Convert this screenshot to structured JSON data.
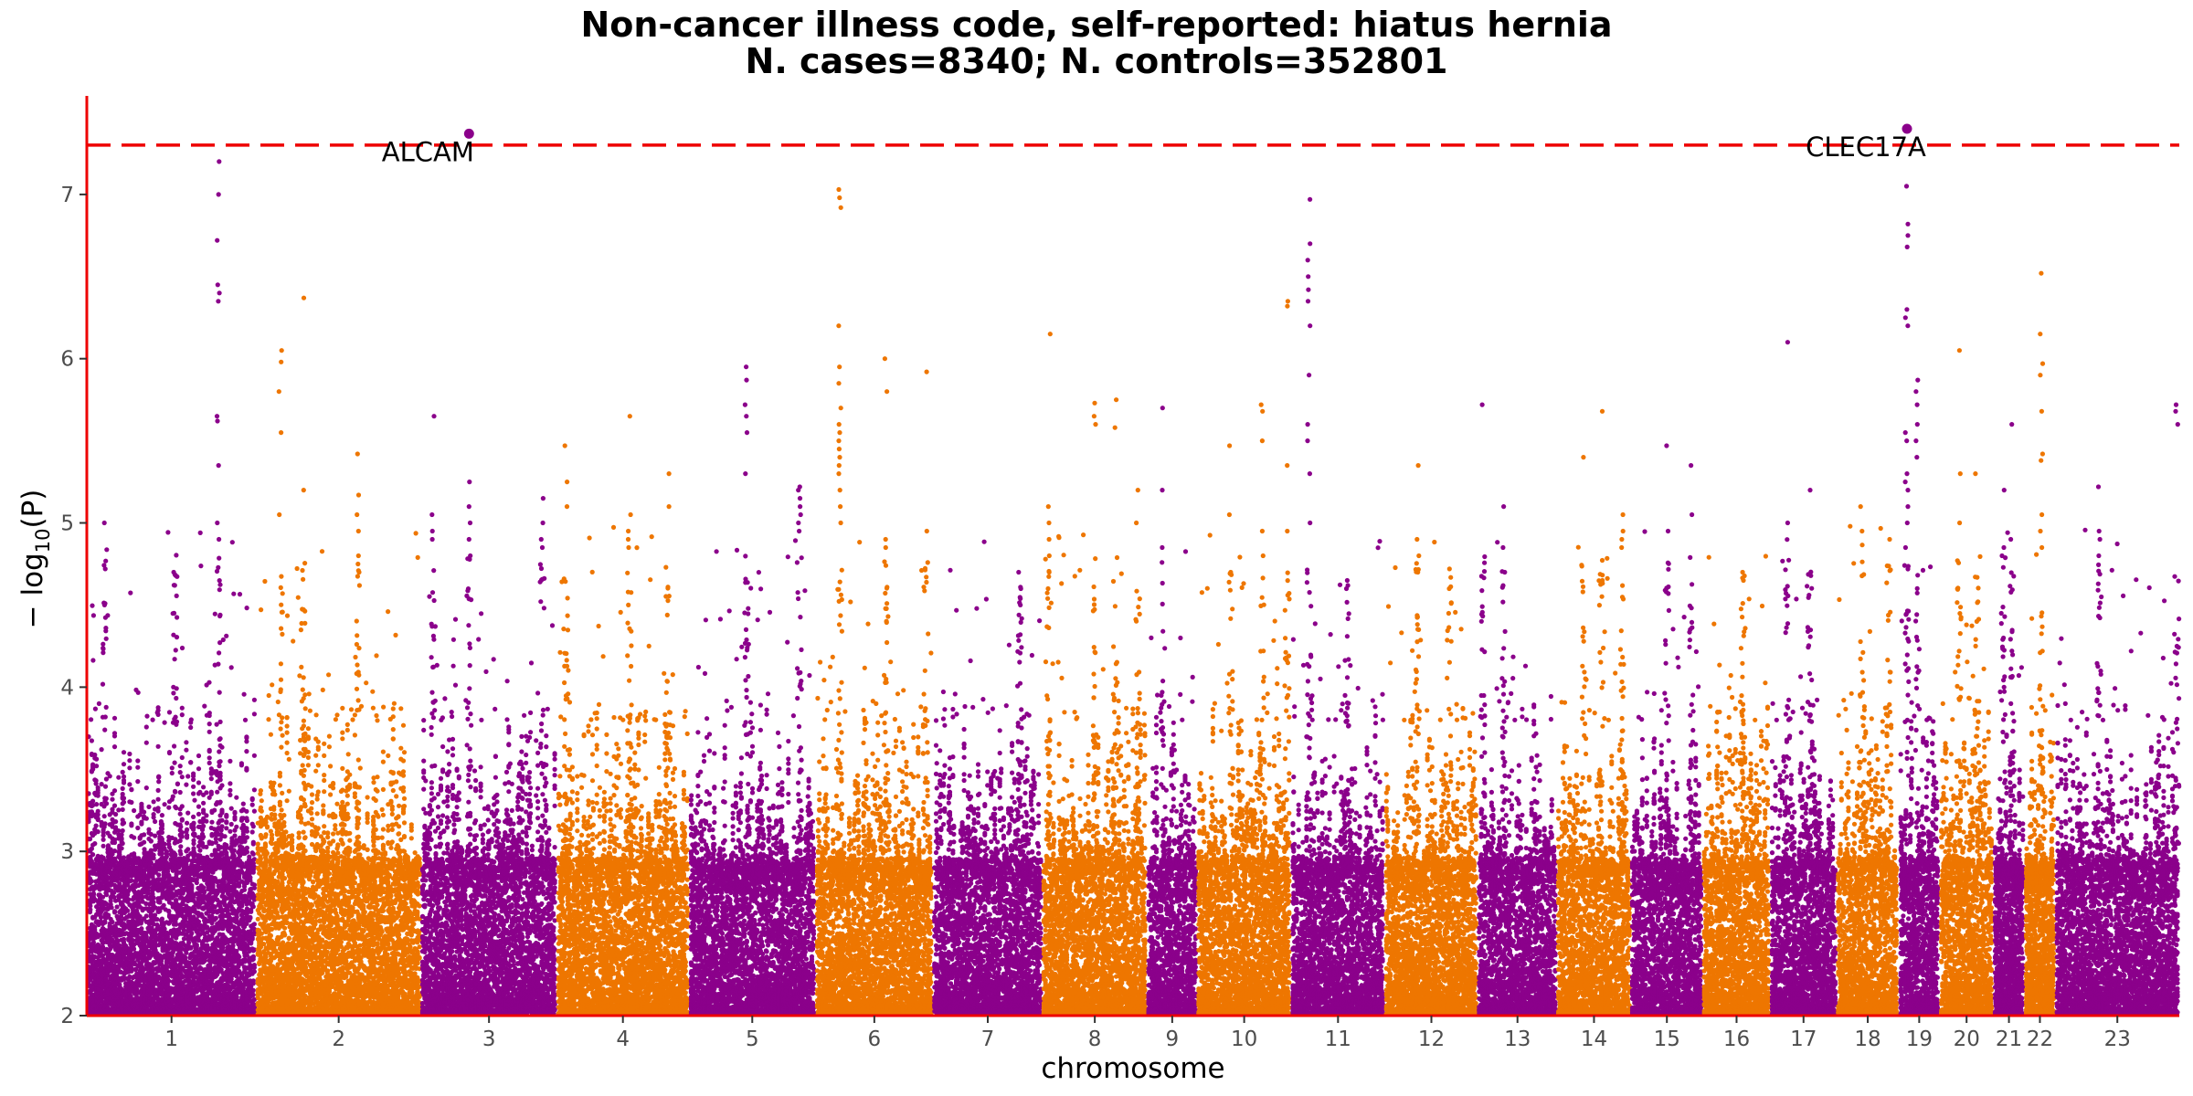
{
  "chart_data": {
    "type": "scatter",
    "title_line1": "Non-cancer illness code, self-reported: hiatus hernia",
    "title_line2": "N. cases=8340; N. controls=352801",
    "xlabel": "chromosome",
    "ylabel_prefix": "− log",
    "ylabel_sub": "10",
    "ylabel_suffix": "(P)",
    "ylim": [
      2,
      7.6
    ],
    "y_ticks": [
      2,
      3,
      4,
      5,
      6,
      7
    ],
    "significance_threshold": 7.3,
    "colors": {
      "odd": "#8b008b",
      "even": "#ee7600",
      "threshold": "#ee0000",
      "axis": "#ee0000"
    },
    "chromosomes": [
      {
        "label": "1",
        "span": [
          0.0,
          186.0
        ]
      },
      {
        "label": "2",
        "span": [
          186.0,
          367.0
        ]
      },
      {
        "label": "3",
        "span": [
          367.0,
          516.0
        ]
      },
      {
        "label": "4",
        "span": [
          516.0,
          661.0
        ]
      },
      {
        "label": "5",
        "span": [
          661.0,
          800.0
        ]
      },
      {
        "label": "6",
        "span": [
          800.0,
          929.0
        ]
      },
      {
        "label": "7",
        "span": [
          929.0,
          1049.0
        ]
      },
      {
        "label": "8",
        "span": [
          1049.0,
          1164.0
        ]
      },
      {
        "label": "9",
        "span": [
          1164.0,
          1219.0
        ]
      },
      {
        "label": "10",
        "span": [
          1219.0,
          1322.0
        ]
      },
      {
        "label": "11",
        "span": [
          1322.0,
          1425.0
        ]
      },
      {
        "label": "12",
        "span": [
          1425.0,
          1527.0
        ]
      },
      {
        "label": "13",
        "span": [
          1527.0,
          1614.0
        ]
      },
      {
        "label": "14",
        "span": [
          1614.0,
          1695.0
        ]
      },
      {
        "label": "15",
        "span": [
          1695.0,
          1774.0
        ]
      },
      {
        "label": "16",
        "span": [
          1774.0,
          1848.0
        ]
      },
      {
        "label": "17",
        "span": [
          1848.0,
          1921.0
        ]
      },
      {
        "label": "18",
        "span": [
          1921.0,
          1989.0
        ]
      },
      {
        "label": "19",
        "span": [
          1989.0,
          2034.0
        ]
      },
      {
        "label": "20",
        "span": [
          2034.0,
          2093.0
        ]
      },
      {
        "label": "21",
        "span": [
          2093.0,
          2127.0
        ]
      },
      {
        "label": "22",
        "span": [
          2127.0,
          2161.0
        ]
      },
      {
        "label": "23",
        "span": [
          2161.0,
          2297.0
        ]
      }
    ],
    "peaks": [
      {
        "chr": 1,
        "pos": 0.78,
        "values": [
          7.2,
          7.0,
          6.72,
          6.45,
          6.4,
          6.35,
          5.65,
          5.62,
          5.35,
          5.0,
          4.9
        ]
      },
      {
        "chr": 1,
        "pos": 0.52,
        "values": [
          4.7,
          4.68,
          4.62,
          4.45
        ]
      },
      {
        "chr": 1,
        "pos": 0.1,
        "values": [
          5.0,
          4.72,
          4.5
        ]
      },
      {
        "chr": 2,
        "pos": 0.14,
        "values": [
          6.05,
          5.98,
          5.8,
          5.55,
          5.05
        ]
      },
      {
        "chr": 2,
        "pos": 0.28,
        "values": [
          6.37,
          5.2
        ]
      },
      {
        "chr": 2,
        "pos": 0.62,
        "values": [
          5.42,
          5.17,
          5.05,
          4.95,
          4.8,
          4.75,
          4.7
        ]
      },
      {
        "chr": 3,
        "pos": 0.08,
        "values": [
          5.65,
          5.05,
          4.95,
          4.9
        ]
      },
      {
        "chr": 3,
        "pos": 0.35,
        "values": [
          5.25,
          5.1,
          5.0,
          4.9,
          4.8
        ]
      },
      {
        "chr": 3,
        "pos": 0.9,
        "values": [
          5.15,
          5.0,
          4.9,
          4.85
        ]
      },
      {
        "chr": 4,
        "pos": 0.06,
        "values": [
          5.47,
          5.25,
          5.1
        ]
      },
      {
        "chr": 4,
        "pos": 0.55,
        "values": [
          5.65,
          5.05,
          4.95,
          4.9,
          4.85
        ]
      },
      {
        "chr": 4,
        "pos": 0.85,
        "values": [
          5.3,
          5.1
        ]
      },
      {
        "chr": 5,
        "pos": 0.45,
        "values": [
          5.95,
          5.87,
          5.72,
          5.65,
          5.55,
          5.3
        ]
      },
      {
        "chr": 5,
        "pos": 0.88,
        "values": [
          5.22,
          5.2,
          5.15,
          5.1,
          5.05,
          5.0,
          4.95
        ]
      },
      {
        "chr": 6,
        "pos": 0.2,
        "values": [
          7.03,
          6.98,
          6.92,
          6.2,
          5.95,
          5.85,
          5.7,
          5.6,
          5.55,
          5.5,
          5.45,
          5.4,
          5.35,
          5.3,
          5.2,
          5.1,
          5.0
        ]
      },
      {
        "chr": 6,
        "pos": 0.6,
        "values": [
          6.0,
          5.8,
          4.9,
          4.85
        ]
      },
      {
        "chr": 6,
        "pos": 0.95,
        "values": [
          5.92,
          4.95
        ]
      },
      {
        "chr": 7,
        "pos": 0.8,
        "values": [
          4.7,
          4.6,
          4.5
        ]
      },
      {
        "chr": 8,
        "pos": 0.05,
        "values": [
          6.15,
          5.1,
          5.0,
          4.9,
          4.8,
          4.7,
          4.6
        ]
      },
      {
        "chr": 8,
        "pos": 0.5,
        "values": [
          5.73,
          5.65,
          5.6
        ]
      },
      {
        "chr": 8,
        "pos": 0.7,
        "values": [
          5.75,
          5.58
        ]
      },
      {
        "chr": 8,
        "pos": 0.92,
        "values": [
          5.2,
          5.0
        ]
      },
      {
        "chr": 9,
        "pos": 0.3,
        "values": [
          5.7,
          5.2,
          4.85
        ]
      },
      {
        "chr": 10,
        "pos": 0.35,
        "values": [
          5.47,
          5.05,
          4.7
        ]
      },
      {
        "chr": 10,
        "pos": 0.7,
        "values": [
          5.72,
          5.68,
          5.5,
          4.95,
          4.8
        ]
      },
      {
        "chr": 10,
        "pos": 0.97,
        "values": [
          6.35,
          6.32,
          5.35,
          4.95
        ]
      },
      {
        "chr": 11,
        "pos": 0.18,
        "values": [
          6.97,
          6.7,
          6.6,
          6.5,
          6.42,
          6.35,
          6.2,
          5.9,
          5.6,
          5.5,
          5.3,
          5.0
        ]
      },
      {
        "chr": 11,
        "pos": 0.6,
        "values": [
          4.65,
          4.6
        ]
      },
      {
        "chr": 12,
        "pos": 0.35,
        "values": [
          5.35,
          4.9,
          4.8,
          4.7
        ]
      },
      {
        "chr": 12,
        "pos": 0.7,
        "values": [
          4.72,
          4.6
        ]
      },
      {
        "chr": 13,
        "pos": 0.05,
        "values": [
          5.72
        ]
      },
      {
        "chr": 13,
        "pos": 0.32,
        "values": [
          5.1,
          4.85,
          4.7
        ]
      },
      {
        "chr": 14,
        "pos": 0.35,
        "values": [
          5.4
        ]
      },
      {
        "chr": 14,
        "pos": 0.6,
        "values": [
          5.68,
          4.65
        ]
      },
      {
        "chr": 14,
        "pos": 0.9,
        "values": [
          5.05,
          4.95,
          4.9,
          4.85
        ]
      },
      {
        "chr": 15,
        "pos": 0.5,
        "values": [
          5.47,
          4.95
        ]
      },
      {
        "chr": 15,
        "pos": 0.85,
        "values": [
          5.35,
          5.05
        ]
      },
      {
        "chr": 16,
        "pos": 0.6,
        "values": [
          4.7,
          4.65
        ]
      },
      {
        "chr": 17,
        "pos": 0.25,
        "values": [
          6.1,
          5.0
        ]
      },
      {
        "chr": 17,
        "pos": 0.6,
        "values": [
          5.2
        ]
      },
      {
        "chr": 18,
        "pos": 0.4,
        "values": [
          5.1,
          4.95
        ]
      },
      {
        "chr": 18,
        "pos": 0.85,
        "values": [
          4.9
        ]
      },
      {
        "chr": 19,
        "pos": 0.17,
        "values": [
          7.05,
          6.82,
          6.75,
          6.68,
          6.3,
          6.25,
          6.2,
          5.55,
          5.5,
          5.3,
          5.25,
          5.2,
          5.1,
          5.0,
          4.85
        ]
      },
      {
        "chr": 19,
        "pos": 0.45,
        "values": [
          5.87,
          5.8,
          5.72,
          5.6,
          5.5,
          5.4
        ]
      },
      {
        "chr": 20,
        "pos": 0.35,
        "values": [
          6.05,
          5.3,
          5.0
        ]
      },
      {
        "chr": 20,
        "pos": 0.7,
        "values": [
          5.3
        ]
      },
      {
        "chr": 21,
        "pos": 0.3,
        "values": [
          5.2,
          4.85,
          4.8
        ]
      },
      {
        "chr": 21,
        "pos": 0.6,
        "values": [
          5.6,
          4.9
        ]
      },
      {
        "chr": 22,
        "pos": 0.55,
        "values": [
          6.52,
          6.15,
          5.97,
          5.9,
          5.68,
          5.42,
          5.38,
          5.05,
          4.95,
          4.85
        ]
      },
      {
        "chr": 23,
        "pos": 0.35,
        "values": [
          5.22,
          4.95,
          4.9,
          4.8
        ]
      },
      {
        "chr": 23,
        "pos": 0.99,
        "values": [
          5.72,
          5.68,
          5.6
        ]
      }
    ],
    "significant_snps": [
      {
        "gene": "ALCAM",
        "chr": 3,
        "pos": 0.35,
        "value": 7.37
      },
      {
        "gene": "CLEC17A",
        "chr": 19,
        "pos": 0.18,
        "value": 7.4
      }
    ]
  }
}
